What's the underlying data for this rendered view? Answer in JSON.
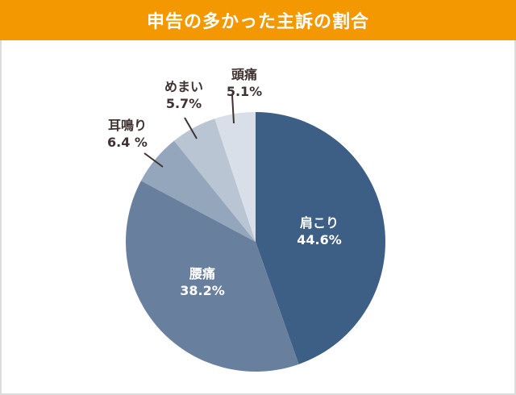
{
  "header": {
    "title": "申告の多かった主訴の割合"
  },
  "colors": {
    "header_bg": "#f39800",
    "text_dark": "#3e3331"
  },
  "chart_data": {
    "type": "pie",
    "title": "申告の多かった主訴の割合",
    "start_angle": "12 o'clock, clockwise",
    "slices": [
      {
        "label": "肩こり",
        "value": 44.6,
        "value_label": "44.6%",
        "color": "#3d5e85"
      },
      {
        "label": "腰痛",
        "value": 38.2,
        "value_label": "38.2%",
        "color": "#68809e"
      },
      {
        "label": "耳鳴り",
        "value": 6.4,
        "value_label": "6.4 %",
        "color": "#94a6bc"
      },
      {
        "label": "めまい",
        "value": 5.7,
        "value_label": "5.7%",
        "color": "#b9c5d3"
      },
      {
        "label": "頭痛",
        "value": 5.1,
        "value_label": "5.1%",
        "color": "#d8dfe8"
      }
    ],
    "legend": "none (labels on/next to slices)"
  }
}
